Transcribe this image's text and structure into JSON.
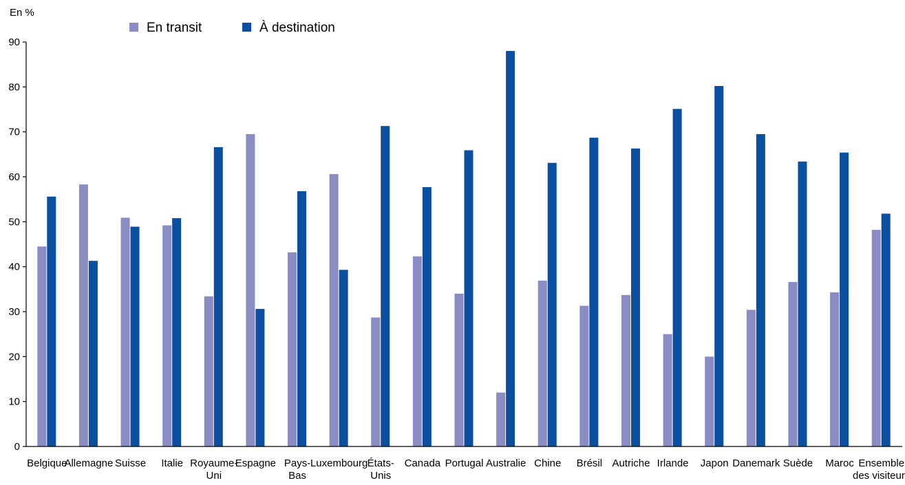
{
  "chart_data": {
    "type": "bar",
    "unit_label": "En %",
    "ylim": [
      0,
      90
    ],
    "yticks": [
      0,
      10,
      20,
      30,
      40,
      50,
      60,
      70,
      80,
      90
    ],
    "grid": false,
    "legend_position": "top-left",
    "categories": [
      [
        "Belgique"
      ],
      [
        "Allemagne"
      ],
      [
        "Suisse"
      ],
      [
        "Italie"
      ],
      [
        "Royaume-",
        "Uni"
      ],
      [
        "Espagne"
      ],
      [
        "Pays-",
        "Bas"
      ],
      [
        "Luxembourg"
      ],
      [
        "États-",
        "Unis"
      ],
      [
        "Canada"
      ],
      [
        "Portugal"
      ],
      [
        "Australie"
      ],
      [
        "Chine"
      ],
      [
        "Brésil"
      ],
      [
        "Autriche"
      ],
      [
        "Irlande"
      ],
      [
        "Japon"
      ],
      [
        "Danemark"
      ],
      [
        "Suède"
      ],
      [
        "Maroc"
      ],
      [
        "Ensemble",
        "des visiteurs"
      ]
    ],
    "series": [
      {
        "name": "En transit",
        "color": "#8a8dc4",
        "values": [
          44.5,
          58.3,
          50.9,
          49.2,
          33.4,
          69.5,
          43.2,
          60.6,
          28.7,
          42.3,
          34.0,
          12.0,
          36.9,
          31.3,
          33.7,
          25.0,
          20.0,
          30.4,
          36.6,
          34.3,
          48.2
        ]
      },
      {
        "name": "À destination",
        "color": "#0b4fa0",
        "values": [
          55.6,
          41.3,
          48.9,
          50.8,
          66.6,
          30.6,
          56.8,
          39.3,
          71.3,
          57.7,
          65.9,
          88.0,
          63.1,
          68.7,
          66.3,
          75.1,
          80.2,
          69.5,
          63.4,
          65.4,
          51.8
        ]
      }
    ]
  }
}
